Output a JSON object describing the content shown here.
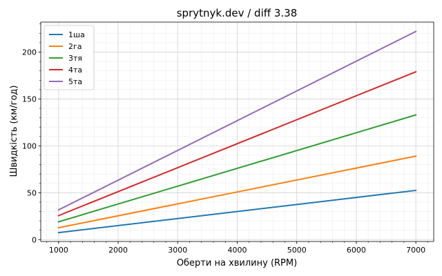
{
  "chart_data": {
    "type": "line",
    "title": "sprytnyk.dev / diff 3.38",
    "xlabel": "Оберти на хвилину (RPM)",
    "ylabel": "Швидкість (км/год)",
    "xlim": [
      700,
      7300
    ],
    "ylim": [
      -2,
      232
    ],
    "xticks": [
      1000,
      2000,
      3000,
      4000,
      5000,
      6000,
      7000
    ],
    "yticks": [
      0,
      50,
      100,
      150,
      200
    ],
    "x": [
      1000,
      7000
    ],
    "grid": true,
    "legend_position": "top-left",
    "series": [
      {
        "name": "1ша",
        "color": "#1f77b4",
        "values": [
          7.5,
          52.5
        ]
      },
      {
        "name": "2га",
        "color": "#ff7f0e",
        "values": [
          12.7,
          89.0
        ]
      },
      {
        "name": "3тя",
        "color": "#2ca02c",
        "values": [
          19.0,
          133.0
        ]
      },
      {
        "name": "4та",
        "color": "#d62728",
        "values": [
          25.6,
          179.0
        ]
      },
      {
        "name": "5та",
        "color": "#9467bd",
        "values": [
          31.7,
          222.0
        ]
      }
    ]
  }
}
